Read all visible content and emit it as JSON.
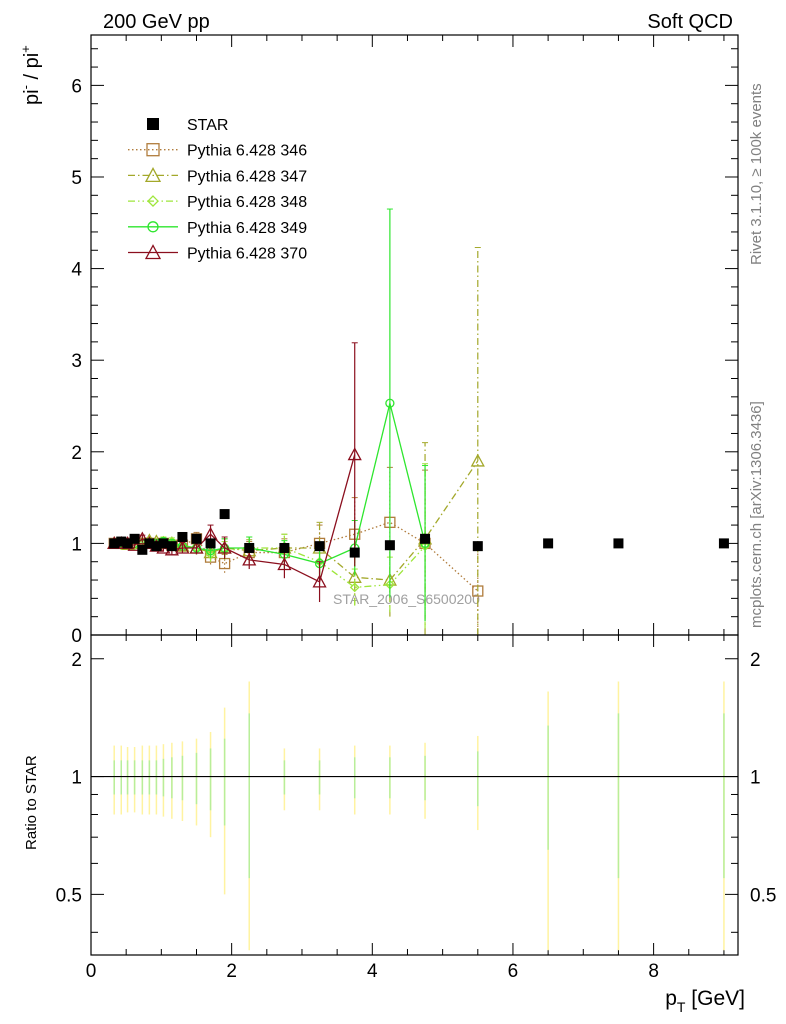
{
  "header": {
    "left": "200 GeV pp",
    "right": "Soft QCD"
  },
  "side_text": {
    "rivet": "Rivet 3.1.10, ≥ 100k events",
    "mcplots": "mcplots.cern.ch [arXiv:1306.3436]"
  },
  "watermark": "STAR_2006_S6500200",
  "chart_data": {
    "type": "scatter",
    "ylabel_main": {
      "base": "pi",
      "sup1": "-",
      "sep": " / pi",
      "sup2": "+"
    },
    "ylabel_ratio": "Ratio to STAR",
    "xlabel": {
      "base": "p",
      "sub": "T",
      "unit": " [GeV]"
    },
    "xlim": [
      0,
      9.2
    ],
    "ylim_main": [
      0,
      6.55
    ],
    "ylim_ratio": [
      0.35,
      2.3
    ],
    "x_ticks": [
      "0",
      "2",
      "4",
      "6",
      "8"
    ],
    "y_ticks_main": [
      "0",
      "1",
      "2",
      "3",
      "4",
      "5",
      "6"
    ],
    "y_ticks_ratio": [
      "0.5",
      "1",
      "2"
    ],
    "legend_position": "top-left",
    "star": {
      "name": "STAR",
      "x": [
        0.33,
        0.43,
        0.52,
        0.62,
        0.73,
        0.83,
        0.93,
        1.03,
        1.15,
        1.3,
        1.5,
        1.7,
        1.9,
        2.25,
        2.75,
        3.25,
        3.75,
        4.25,
        4.75,
        5.5,
        6.5,
        7.5,
        9.0
      ],
      "y": [
        1.0,
        1.02,
        1.0,
        1.05,
        0.93,
        1.0,
        0.97,
        1.0,
        0.97,
        1.07,
        1.05,
        1.0,
        1.32,
        0.95,
        0.95,
        0.97,
        0.9,
        0.98,
        1.05,
        0.97,
        1.0,
        1.0,
        1.0
      ],
      "ratio_err_yellow": [
        0.2,
        0.2,
        0.19,
        0.19,
        0.2,
        0.2,
        0.2,
        0.21,
        0.22,
        0.23,
        0.25,
        0.3,
        0.5,
        0.75,
        0.18,
        0.18,
        0.2,
        0.2,
        0.22,
        0.27,
        0.65,
        0.75,
        0.75
      ],
      "ratio_err_green": [
        0.1,
        0.1,
        0.1,
        0.1,
        0.1,
        0.1,
        0.1,
        0.11,
        0.12,
        0.13,
        0.15,
        0.18,
        0.25,
        0.45,
        0.1,
        0.1,
        0.12,
        0.12,
        0.13,
        0.16,
        0.35,
        0.45,
        0.45
      ]
    },
    "series": [
      {
        "name": "Pythia 6.428 346",
        "color": "#b07c3c",
        "marker": "square",
        "dash": "1.5,2.5",
        "x": [
          0.33,
          0.43,
          0.52,
          0.62,
          0.73,
          0.83,
          0.93,
          1.03,
          1.15,
          1.3,
          1.5,
          1.7,
          1.9,
          2.25,
          2.75,
          3.25,
          3.75,
          4.25,
          4.75,
          5.5
        ],
        "y": [
          1.0,
          1.0,
          1.0,
          1.0,
          1.0,
          1.0,
          0.98,
          1.0,
          0.98,
          0.98,
          1.05,
          0.85,
          0.78,
          0.9,
          0.9,
          1.0,
          1.1,
          1.23,
          1.0,
          0.48
        ],
        "err": [
          0.03,
          0.03,
          0.03,
          0.03,
          0.03,
          0.03,
          0.03,
          0.04,
          0.04,
          0.05,
          0.07,
          0.08,
          0.1,
          0.12,
          0.15,
          0.2,
          0.4,
          0.6,
          0.8,
          0.5
        ]
      },
      {
        "name": "Pythia 6.428 347",
        "color": "#a3a82a",
        "marker": "triangle",
        "dash": "7,3,1.5,3",
        "x": [
          0.33,
          0.43,
          0.52,
          0.62,
          0.73,
          0.83,
          0.93,
          1.03,
          1.15,
          1.3,
          1.5,
          1.7,
          1.9,
          2.25,
          2.75,
          3.25,
          3.75,
          4.25,
          4.75,
          5.5
        ],
        "y": [
          1.0,
          1.0,
          0.99,
          1.0,
          1.0,
          1.03,
          1.02,
          1.0,
          1.0,
          0.97,
          0.95,
          0.9,
          0.95,
          0.92,
          0.95,
          0.95,
          0.63,
          0.6,
          1.05,
          1.9
        ],
        "err": [
          0.03,
          0.03,
          0.03,
          0.03,
          0.03,
          0.03,
          0.03,
          0.04,
          0.04,
          0.05,
          0.07,
          0.08,
          0.1,
          0.12,
          0.15,
          0.28,
          0.3,
          0.4,
          1.05,
          2.33
        ]
      },
      {
        "name": "Pythia 6.428 348",
        "color": "#9ee63b",
        "marker": "diamond",
        "dash": "7,3,1.5,3,1.5,3",
        "x": [
          0.33,
          0.43,
          0.52,
          0.62,
          0.73,
          0.83,
          0.93,
          1.03,
          1.15,
          1.3,
          1.5,
          1.7,
          1.9,
          2.25,
          2.75,
          3.25,
          3.75,
          4.25,
          4.75
        ],
        "y": [
          1.0,
          0.98,
          1.0,
          0.98,
          1.0,
          1.02,
          1.0,
          1.03,
          1.02,
          0.98,
          0.95,
          0.88,
          0.92,
          0.95,
          0.95,
          0.8,
          0.52,
          0.55,
          0.97
        ],
        "err": [
          0.03,
          0.03,
          0.03,
          0.03,
          0.03,
          0.03,
          0.03,
          0.04,
          0.04,
          0.05,
          0.07,
          0.08,
          0.1,
          0.12,
          0.15,
          0.15,
          0.2,
          0.3,
          0.9
        ]
      },
      {
        "name": "Pythia 6.428 349",
        "color": "#2ee62e",
        "marker": "circle",
        "dash": "",
        "x": [
          0.33,
          0.43,
          0.52,
          0.62,
          0.73,
          0.83,
          0.93,
          1.03,
          1.15,
          1.3,
          1.5,
          1.7,
          1.9,
          2.25,
          2.75,
          3.25,
          3.75,
          4.25,
          4.75
        ],
        "y": [
          1.0,
          1.0,
          1.0,
          1.0,
          1.0,
          1.0,
          1.0,
          1.02,
          1.0,
          0.97,
          0.95,
          0.92,
          0.95,
          0.95,
          0.88,
          0.78,
          0.95,
          2.53,
          1.0
        ],
        "err": [
          0.03,
          0.03,
          0.03,
          0.03,
          0.03,
          0.03,
          0.03,
          0.04,
          0.04,
          0.05,
          0.07,
          0.08,
          0.1,
          0.12,
          0.15,
          0.15,
          0.3,
          2.12,
          0.85
        ]
      },
      {
        "name": "Pythia 6.428 370",
        "color": "#8b0f1e",
        "marker": "triangle",
        "dash": "",
        "x": [
          0.33,
          0.43,
          0.52,
          0.62,
          0.73,
          0.83,
          0.93,
          1.03,
          1.15,
          1.3,
          1.5,
          1.7,
          1.9,
          2.25,
          2.75,
          3.25,
          3.75
        ],
        "y": [
          1.0,
          1.0,
          1.0,
          0.98,
          1.05,
          1.0,
          0.97,
          0.95,
          0.93,
          0.95,
          0.95,
          1.1,
          0.95,
          0.82,
          0.77,
          0.58,
          1.97
        ],
        "err": [
          0.03,
          0.03,
          0.03,
          0.03,
          0.04,
          0.04,
          0.04,
          0.04,
          0.05,
          0.06,
          0.07,
          0.1,
          0.12,
          0.1,
          0.15,
          0.22,
          1.22
        ]
      }
    ]
  }
}
